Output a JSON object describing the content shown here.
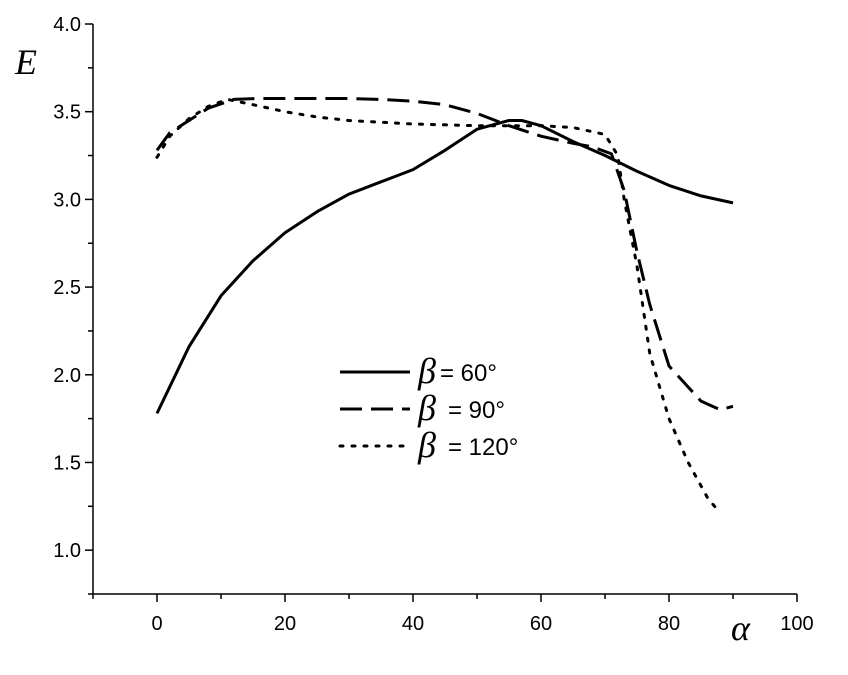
{
  "chart_data": {
    "type": "line",
    "xlabel": "α",
    "ylabel": "E",
    "xlim": [
      -10,
      100
    ],
    "ylim": [
      0.75,
      4.0
    ],
    "x_ticks": [
      0,
      20,
      40,
      60,
      80,
      100
    ],
    "y_ticks": [
      1.0,
      1.5,
      2.0,
      2.5,
      3.0,
      3.5,
      4.0
    ],
    "x_tick_labels": [
      "0",
      "20",
      "40",
      "60",
      "80",
      "100"
    ],
    "y_tick_labels": [
      "1.0",
      "1.5",
      "2.0",
      "2.5",
      "3.0",
      "3.5",
      "4.0"
    ],
    "grid": false,
    "legend_position": "center",
    "series": [
      {
        "name": "β= 60°",
        "legend_symbol": "β",
        "legend_text": "= 60°",
        "style": "solid",
        "x": [
          0,
          5,
          10,
          15,
          20,
          25,
          30,
          35,
          40,
          45,
          50,
          55,
          57,
          60,
          65,
          70,
          75,
          80,
          85,
          90
        ],
        "y": [
          1.78,
          2.16,
          2.45,
          2.65,
          2.81,
          2.93,
          3.03,
          3.1,
          3.17,
          3.28,
          3.4,
          3.45,
          3.45,
          3.42,
          3.33,
          3.25,
          3.16,
          3.08,
          3.02,
          2.98
        ]
      },
      {
        "name": "β= 90°",
        "legend_symbol": "β",
        "legend_text": "= 90°",
        "style": "dashed",
        "x": [
          0,
          2,
          5,
          8,
          12,
          16,
          20,
          25,
          30,
          35,
          40,
          45,
          50,
          55,
          60,
          65,
          68,
          71,
          73,
          75,
          77,
          80,
          85,
          88,
          90
        ],
        "y": [
          3.28,
          3.38,
          3.45,
          3.52,
          3.57,
          3.575,
          3.575,
          3.575,
          3.575,
          3.57,
          3.56,
          3.54,
          3.49,
          3.42,
          3.36,
          3.32,
          3.3,
          3.26,
          3.05,
          2.7,
          2.4,
          2.05,
          1.85,
          1.8,
          1.82
        ]
      },
      {
        "name": "β = 120°",
        "legend_symbol": "β",
        "legend_text": "= 120°",
        "style": "dotted",
        "x": [
          0,
          2,
          5,
          8,
          11,
          15,
          20,
          25,
          30,
          40,
          50,
          55,
          60,
          65,
          70,
          72,
          73,
          75,
          77,
          80,
          83,
          86,
          88
        ],
        "y": [
          3.24,
          3.36,
          3.46,
          3.53,
          3.57,
          3.54,
          3.5,
          3.47,
          3.45,
          3.43,
          3.42,
          3.42,
          3.42,
          3.41,
          3.37,
          3.25,
          3.0,
          2.62,
          2.12,
          1.75,
          1.5,
          1.3,
          1.21
        ]
      }
    ]
  }
}
